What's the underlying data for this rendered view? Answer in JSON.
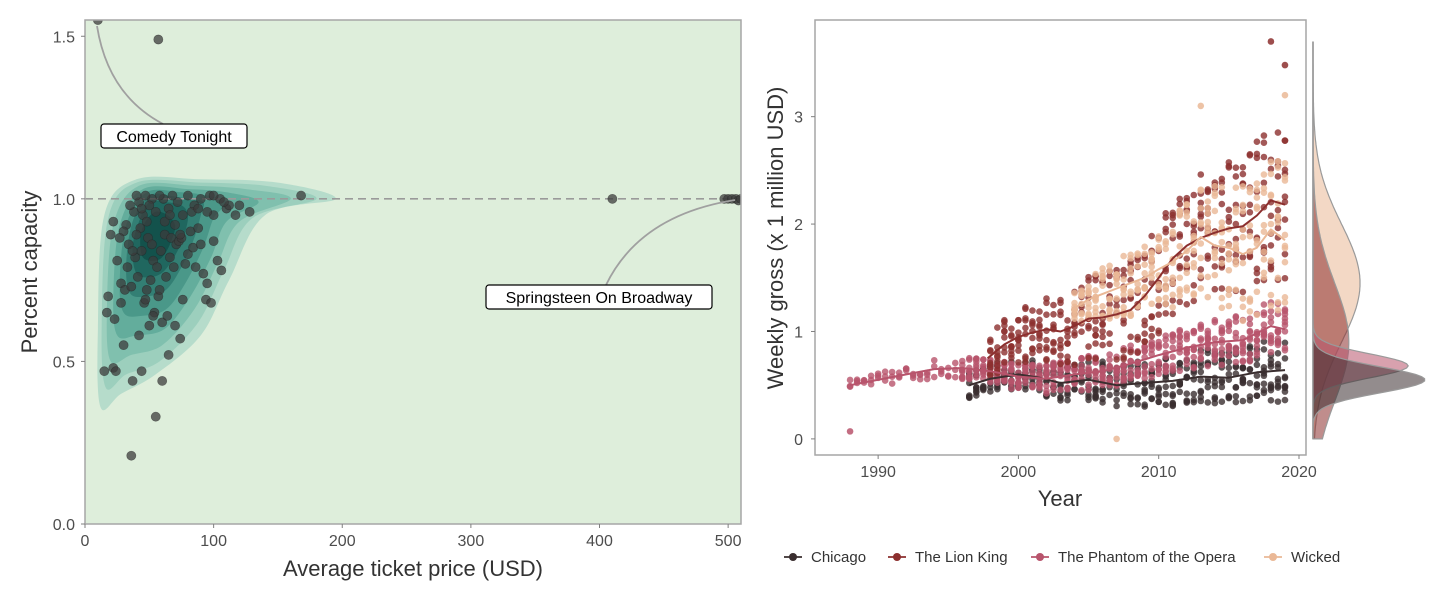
{
  "chart_data": [
    {
      "type": "scatter",
      "xlabel": "Average ticket price (USD)",
      "ylabel": "Percent capacity",
      "xlim": [
        0,
        510
      ],
      "ylim": [
        0,
        1.55
      ],
      "x_ticks": [
        0,
        100,
        200,
        300,
        400,
        500
      ],
      "y_ticks": [
        0.0,
        0.5,
        1.0,
        1.5
      ],
      "x_tick_labels": [
        "0",
        "100",
        "200",
        "300",
        "400",
        "500"
      ],
      "y_tick_labels": [
        "0.0",
        "0.5",
        "1.0",
        "1.5"
      ],
      "reference_line_y": 1.0,
      "grid": false,
      "background_color": "#deeedb",
      "density_colors": [
        "#b6dccb",
        "#9ccfbd",
        "#80c0ae",
        "#63ad9c",
        "#4a9889",
        "#337f74",
        "#20675f",
        "#13524c"
      ],
      "point_color": "#3c3c3c",
      "points": [
        [
          10,
          1.55
        ],
        [
          57,
          1.49
        ],
        [
          410,
          1.0
        ],
        [
          497,
          1.0
        ],
        [
          500,
          1.0
        ],
        [
          503,
          1.0
        ],
        [
          506,
          1.0
        ],
        [
          508,
          0.995
        ],
        [
          510,
          1.0
        ],
        [
          168,
          1.01
        ],
        [
          128,
          0.96
        ],
        [
          120,
          0.98
        ],
        [
          110,
          0.97
        ],
        [
          105,
          1.0
        ],
        [
          100,
          0.95
        ],
        [
          97,
          1.01
        ],
        [
          90,
          1.0
        ],
        [
          85,
          0.98
        ],
        [
          80,
          1.01
        ],
        [
          76,
          0.95
        ],
        [
          72,
          0.99
        ],
        [
          68,
          1.01
        ],
        [
          65,
          0.97
        ],
        [
          61,
          1.0
        ],
        [
          58,
          1.01
        ],
        [
          55,
          0.96
        ],
        [
          52,
          1.0
        ],
        [
          50,
          0.98
        ],
        [
          47,
          1.01
        ],
        [
          45,
          0.95
        ],
        [
          42,
          0.99
        ],
        [
          40,
          1.01
        ],
        [
          38,
          0.96
        ],
        [
          35,
          0.98
        ],
        [
          32,
          0.92
        ],
        [
          30,
          0.9
        ],
        [
          27,
          0.88
        ],
        [
          25,
          0.81
        ],
        [
          22,
          0.93
        ],
        [
          20,
          0.89
        ],
        [
          18,
          0.7
        ],
        [
          17,
          0.65
        ],
        [
          15,
          0.47
        ],
        [
          22,
          0.48
        ],
        [
          24,
          0.47
        ],
        [
          28,
          0.74
        ],
        [
          31,
          0.72
        ],
        [
          34,
          0.86
        ],
        [
          36,
          0.73
        ],
        [
          39,
          0.82
        ],
        [
          41,
          0.76
        ],
        [
          43,
          0.91
        ],
        [
          44,
          0.84
        ],
        [
          46,
          0.68
        ],
        [
          48,
          0.72
        ],
        [
          49,
          0.88
        ],
        [
          51,
          0.75
        ],
        [
          53,
          0.81
        ],
        [
          54,
          0.65
        ],
        [
          56,
          0.79
        ],
        [
          57,
          0.7
        ],
        [
          59,
          0.84
        ],
        [
          60,
          0.62
        ],
        [
          62,
          0.89
        ],
        [
          63,
          0.76
        ],
        [
          64,
          0.64
        ],
        [
          66,
          0.82
        ],
        [
          67,
          0.88
        ],
        [
          69,
          0.79
        ],
        [
          70,
          0.92
        ],
        [
          71,
          0.86
        ],
        [
          73,
          0.87
        ],
        [
          74,
          0.57
        ],
        [
          75,
          0.88
        ],
        [
          78,
          0.8
        ],
        [
          80,
          0.83
        ],
        [
          82,
          0.9
        ],
        [
          84,
          0.85
        ],
        [
          86,
          0.79
        ],
        [
          88,
          0.91
        ],
        [
          90,
          0.86
        ],
        [
          92,
          0.77
        ],
        [
          94,
          0.69
        ],
        [
          95,
          0.74
        ],
        [
          98,
          0.68
        ],
        [
          100,
          0.87
        ],
        [
          103,
          0.81
        ],
        [
          106,
          0.78
        ],
        [
          112,
          0.98
        ],
        [
          117,
          0.95
        ],
        [
          23,
          0.63
        ],
        [
          28,
          0.68
        ],
        [
          30,
          0.55
        ],
        [
          44,
          0.47
        ],
        [
          50,
          0.61
        ],
        [
          53,
          0.64
        ],
        [
          60,
          0.44
        ],
        [
          65,
          0.52
        ],
        [
          55,
          0.33
        ],
        [
          37,
          0.44
        ],
        [
          36,
          0.21
        ],
        [
          42,
          0.58
        ],
        [
          47,
          0.69
        ],
        [
          58,
          0.72
        ],
        [
          76,
          0.69
        ],
        [
          70,
          0.61
        ],
        [
          33,
          0.79
        ],
        [
          37,
          0.84
        ],
        [
          40,
          0.89
        ],
        [
          52,
          0.86
        ],
        [
          48,
          0.93
        ],
        [
          44,
          0.97
        ],
        [
          62,
          0.93
        ],
        [
          66,
          0.95
        ],
        [
          74,
          0.89
        ],
        [
          83,
          0.96
        ],
        [
          88,
          0.97
        ],
        [
          95,
          0.96
        ],
        [
          100,
          1.01
        ],
        [
          108,
          0.99
        ]
      ],
      "annotations": [
        {
          "text": "Comedy Tonight",
          "x": 10,
          "y": 1.55
        },
        {
          "text": "Springsteen On Broadway",
          "x": 506,
          "y": 1.0
        }
      ]
    },
    {
      "type": "scatter",
      "xlabel": "Year",
      "ylabel": "Weekly gross (x 1 million USD)",
      "xlim": [
        1985.5,
        2020.5
      ],
      "ylim": [
        -0.15,
        3.9
      ],
      "x_ticks": [
        1990,
        2000,
        2010,
        2020
      ],
      "y_ticks": [
        0,
        1,
        2,
        3
      ],
      "x_tick_labels": [
        "1990",
        "2000",
        "2010",
        "2020"
      ],
      "y_tick_labels": [
        "0",
        "1",
        "2",
        "3"
      ],
      "grid": false,
      "legend_position": "bottom",
      "series": [
        {
          "name": "Chicago",
          "color": "#3a2e2f",
          "start": 1996.5,
          "end": 2019.0,
          "trend": [
            [
              1996.5,
              0.5
            ],
            [
              1998,
              0.56
            ],
            [
              2000,
              0.6
            ],
            [
              2001.5,
              0.57
            ],
            [
              2003,
              0.52
            ],
            [
              2005,
              0.55
            ],
            [
              2007,
              0.5
            ],
            [
              2009,
              0.52
            ],
            [
              2011,
              0.54
            ],
            [
              2013,
              0.58
            ],
            [
              2015,
              0.57
            ],
            [
              2017,
              0.62
            ],
            [
              2019,
              0.64
            ]
          ],
          "spread": [
            0.12,
            0.3
          ]
        },
        {
          "name": "The Lion King",
          "color": "#8c2f2e",
          "start": 1997.8,
          "end": 2019.0,
          "trend": [
            [
              1997.8,
              0.75
            ],
            [
              1999,
              0.88
            ],
            [
              2000,
              0.95
            ],
            [
              2001,
              0.99
            ],
            [
              2002,
              1.02
            ],
            [
              2003,
              1.0
            ],
            [
              2004,
              1.05
            ],
            [
              2005,
              1.12
            ],
            [
              2006,
              1.13
            ],
            [
              2007,
              1.16
            ],
            [
              2008,
              1.2
            ],
            [
              2009,
              1.33
            ],
            [
              2010,
              1.5
            ],
            [
              2011,
              1.68
            ],
            [
              2012,
              1.8
            ],
            [
              2013,
              1.87
            ],
            [
              2014,
              1.92
            ],
            [
              2015,
              1.96
            ],
            [
              2016,
              1.98
            ],
            [
              2017,
              2.08
            ],
            [
              2018,
              2.22
            ],
            [
              2019,
              2.18
            ]
          ],
          "spread": [
            0.2,
            0.75
          ]
        },
        {
          "name": "The Phantom of the Opera",
          "color": "#b8546c",
          "start": 1988.0,
          "end": 2019.0,
          "trend": [
            [
              1988,
              0.5
            ],
            [
              1990,
              0.55
            ],
            [
              1992,
              0.6
            ],
            [
              1994,
              0.65
            ],
            [
              1996,
              0.66
            ],
            [
              1998,
              0.63
            ],
            [
              2000,
              0.58
            ],
            [
              2002,
              0.56
            ],
            [
              2004,
              0.6
            ],
            [
              2006,
              0.63
            ],
            [
              2008,
              0.7
            ],
            [
              2010,
              0.78
            ],
            [
              2012,
              0.85
            ],
            [
              2014,
              0.9
            ],
            [
              2016,
              0.92
            ],
            [
              2018,
              1.05
            ],
            [
              2019,
              1.02
            ]
          ],
          "spread": [
            0.05,
            0.25
          ]
        },
        {
          "name": "Wicked",
          "color": "#eab896",
          "start": 2003.8,
          "end": 2019.0,
          "trend": [
            [
              2003.8,
              1.2
            ],
            [
              2005,
              1.3
            ],
            [
              2006,
              1.35
            ],
            [
              2007,
              1.4
            ],
            [
              2008,
              1.45
            ],
            [
              2009,
              1.5
            ],
            [
              2010,
              1.58
            ],
            [
              2011,
              1.65
            ],
            [
              2012,
              1.75
            ],
            [
              2013,
              1.88
            ],
            [
              2014,
              1.8
            ],
            [
              2015,
              1.78
            ],
            [
              2016,
              1.72
            ],
            [
              2017,
              1.78
            ],
            [
              2018,
              1.95
            ],
            [
              2019,
              1.85
            ]
          ],
          "spread": [
            0.15,
            0.75
          ]
        }
      ],
      "extra_points": [
        {
          "series": "The Phantom of the Opera",
          "x": 1988.0,
          "y": 0.07
        },
        {
          "series": "Wicked",
          "x": 2007.0,
          "y": 0.0
        },
        {
          "series": "The Lion King",
          "x": 2018.0,
          "y": 3.7
        },
        {
          "series": "The Lion King",
          "x": 2019.0,
          "y": 3.48
        },
        {
          "series": "Wicked",
          "x": 2013.0,
          "y": 3.1
        },
        {
          "series": "Wicked",
          "x": 2019.0,
          "y": 3.2
        }
      ],
      "marginal_density": [
        {
          "series": "Chicago",
          "mean": 0.55,
          "sd": 0.12,
          "height": 1.0
        },
        {
          "series": "The Phantom of the Opera",
          "mean": 0.68,
          "sd": 0.11,
          "height": 0.85
        },
        {
          "series": "The Lion King",
          "mean": 0.9,
          "sd": 0.55,
          "height": 0.32
        },
        {
          "series": "Wicked",
          "mean": 1.45,
          "sd": 0.55,
          "height": 0.42
        }
      ]
    }
  ]
}
